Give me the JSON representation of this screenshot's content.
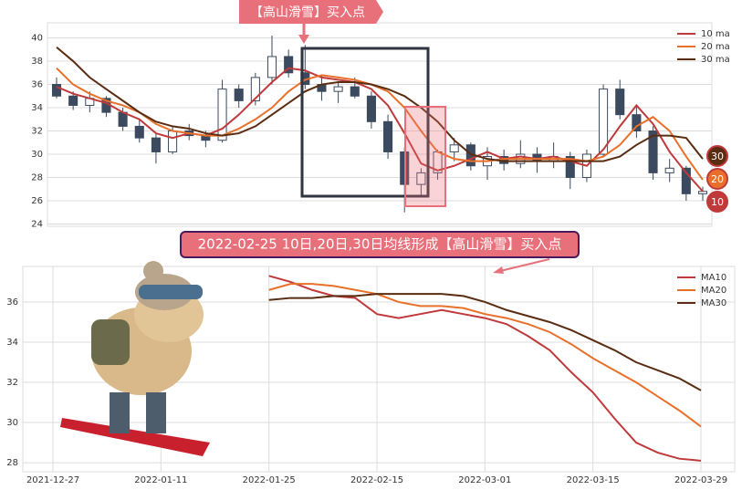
{
  "chart_data": [
    {
      "type": "candlestick",
      "annotation": "【高山滑雪】买入点",
      "badges": [
        "30",
        "20",
        "10"
      ],
      "color": "#3b4a5e",
      "ylim": [
        23.8,
        41.3
      ],
      "yticks": [
        24,
        26,
        28,
        30,
        32,
        34,
        36,
        38,
        40
      ],
      "grid": true,
      "legend": "upper right",
      "open": [
        36.0,
        35.0,
        34.2,
        34.8,
        33.6,
        32.4,
        31.4,
        30.2,
        32.0,
        31.6,
        31.2,
        35.6,
        34.6,
        36.6,
        38.4,
        37.0,
        36.0,
        35.4,
        35.8,
        35.0,
        32.8,
        30.2,
        27.4,
        28.4,
        30.2,
        30.8,
        29.0,
        29.8,
        29.2,
        30.0,
        29.4,
        29.8,
        28.0,
        30.0,
        35.6,
        33.4,
        32.0,
        28.4,
        28.8,
        26.6
      ],
      "high": [
        36.6,
        35.4,
        35.4,
        35.0,
        34.0,
        33.0,
        31.8,
        32.4,
        32.6,
        32.0,
        36.4,
        36.0,
        37.0,
        40.2,
        39.0,
        39.4,
        36.8,
        36.2,
        36.6,
        35.4,
        33.4,
        30.6,
        28.8,
        30.4,
        31.4,
        31.0,
        30.6,
        30.4,
        31.2,
        30.6,
        31.0,
        30.2,
        30.4,
        36.0,
        36.4,
        34.2,
        32.4,
        29.6,
        29.0,
        27.2
      ],
      "low": [
        34.8,
        33.8,
        33.6,
        33.2,
        32.0,
        31.0,
        29.2,
        30.0,
        31.2,
        30.6,
        31.0,
        34.0,
        34.2,
        36.0,
        36.6,
        35.6,
        34.6,
        34.4,
        34.8,
        32.2,
        29.6,
        25.0,
        26.4,
        27.8,
        29.4,
        28.6,
        27.8,
        28.6,
        28.8,
        28.4,
        28.8,
        27.0,
        27.6,
        29.8,
        33.0,
        31.4,
        27.8,
        27.6,
        26.0,
        26.0
      ],
      "close": [
        35.0,
        34.2,
        34.8,
        33.6,
        32.4,
        31.4,
        30.2,
        32.0,
        31.6,
        31.2,
        35.6,
        34.6,
        36.6,
        38.4,
        37.0,
        36.0,
        35.4,
        35.8,
        35.0,
        32.8,
        30.2,
        27.4,
        28.4,
        30.2,
        30.8,
        29.0,
        29.8,
        29.2,
        30.0,
        29.4,
        29.8,
        28.0,
        30.0,
        35.6,
        33.4,
        32.0,
        28.4,
        28.8,
        26.6,
        26.8
      ],
      "series": [
        {
          "name": "10 ma",
          "color": "#c0393b",
          "values": [
            35.8,
            35.2,
            34.8,
            34.4,
            33.6,
            33.0,
            31.8,
            31.4,
            31.8,
            31.6,
            32.2,
            33.4,
            34.8,
            36.2,
            37.4,
            37.2,
            36.6,
            36.4,
            36.2,
            35.6,
            34.2,
            31.8,
            29.2,
            28.6,
            29.0,
            29.6,
            30.2,
            29.6,
            29.8,
            29.6,
            29.8,
            29.4,
            29.0,
            30.4,
            32.4,
            34.2,
            32.6,
            30.2,
            28.4,
            26.8
          ]
        },
        {
          "name": "20 ma",
          "color": "#e8702a",
          "values": [
            37.4,
            36.0,
            35.2,
            34.6,
            34.2,
            33.6,
            32.6,
            32.0,
            31.8,
            31.6,
            31.6,
            32.2,
            33.0,
            34.0,
            35.4,
            36.4,
            36.8,
            36.6,
            36.4,
            36.0,
            35.4,
            34.0,
            32.0,
            30.2,
            29.6,
            29.4,
            29.4,
            29.6,
            29.6,
            29.6,
            29.6,
            29.6,
            29.4,
            29.8,
            30.8,
            32.4,
            33.2,
            32.0,
            29.8,
            27.8
          ]
        },
        {
          "name": "30 ma",
          "color": "#5a2d12",
          "values": [
            39.2,
            38.0,
            36.6,
            35.6,
            34.6,
            33.6,
            32.8,
            32.4,
            32.2,
            31.8,
            31.6,
            31.8,
            32.4,
            33.4,
            34.4,
            35.4,
            36.0,
            36.2,
            36.2,
            36.0,
            35.6,
            35.0,
            34.0,
            32.8,
            31.2,
            30.0,
            29.6,
            29.4,
            29.4,
            29.4,
            29.4,
            29.4,
            29.4,
            29.4,
            29.8,
            30.8,
            31.6,
            31.6,
            31.4,
            29.6
          ]
        }
      ]
    },
    {
      "type": "line",
      "annotation": "2022-02-25 10日,20日,30日均线形成【高山滑雪】买入点",
      "ylim": [
        27.55,
        37.77
      ],
      "yticks": [
        28,
        30,
        32,
        34,
        36
      ],
      "grid": true,
      "legend": "upper right",
      "categories": [
        "2021-12-27",
        null,
        null,
        null,
        null,
        "2022-01-11",
        null,
        null,
        null,
        null,
        "2022-01-25",
        null,
        null,
        null,
        null,
        "2022-02-15",
        null,
        null,
        null,
        null,
        "2022-03-01",
        null,
        null,
        null,
        null,
        "2022-03-15",
        null,
        null,
        null,
        null,
        "2022-03-29"
      ],
      "series": [
        {
          "name": "MA10",
          "color": "#c0393b",
          "values": [
            null,
            null,
            null,
            null,
            null,
            null,
            null,
            null,
            null,
            null,
            37.3,
            37.0,
            36.6,
            36.3,
            36.2,
            35.4,
            35.2,
            35.4,
            35.6,
            35.4,
            35.2,
            34.9,
            34.3,
            33.6,
            32.5,
            31.5,
            30.2,
            29.0,
            28.5,
            28.2,
            28.1
          ]
        },
        {
          "name": "MA20",
          "color": "#e8702a",
          "values": [
            null,
            null,
            null,
            null,
            null,
            null,
            null,
            null,
            null,
            null,
            36.6,
            36.9,
            36.9,
            36.8,
            36.6,
            36.4,
            36.0,
            35.8,
            35.8,
            35.7,
            35.4,
            35.2,
            34.9,
            34.5,
            33.9,
            33.2,
            32.6,
            32.0,
            31.3,
            30.6,
            29.8
          ]
        },
        {
          "name": "MA30",
          "color": "#5a2d12",
          "values": [
            null,
            null,
            null,
            null,
            null,
            null,
            null,
            null,
            null,
            null,
            36.1,
            36.2,
            36.2,
            36.3,
            36.3,
            36.4,
            36.4,
            36.4,
            36.4,
            36.3,
            36.0,
            35.6,
            35.3,
            35.0,
            34.6,
            34.1,
            33.6,
            33.0,
            32.6,
            32.2,
            31.6
          ]
        }
      ]
    }
  ]
}
